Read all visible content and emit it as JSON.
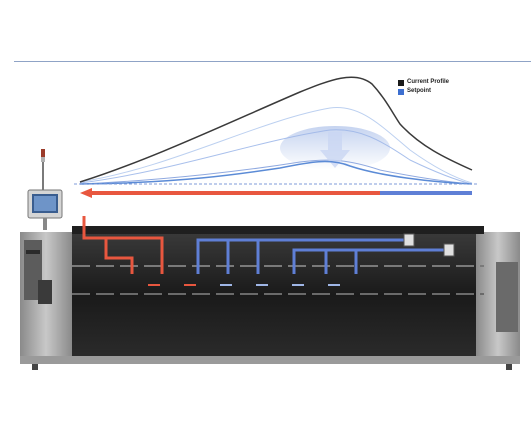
{
  "legend": {
    "items": [
      {
        "label": "Current Profile",
        "color": "#1a1a1a"
      },
      {
        "label": "Setpoint",
        "color": "#3d6fd0"
      }
    ]
  },
  "colors": {
    "current_profile": "#3a3a3a",
    "setpoint": "#5b8bd6",
    "heating_zone": "#e8573f",
    "cooling_zone": "#5f7fd6",
    "machine_body": "#2a2a2a",
    "machine_frame": "#a9a9a9"
  },
  "icons": {
    "machine": "reflow-oven-icon",
    "monitor": "control-monitor-icon",
    "beacon": "signal-tower-icon"
  }
}
